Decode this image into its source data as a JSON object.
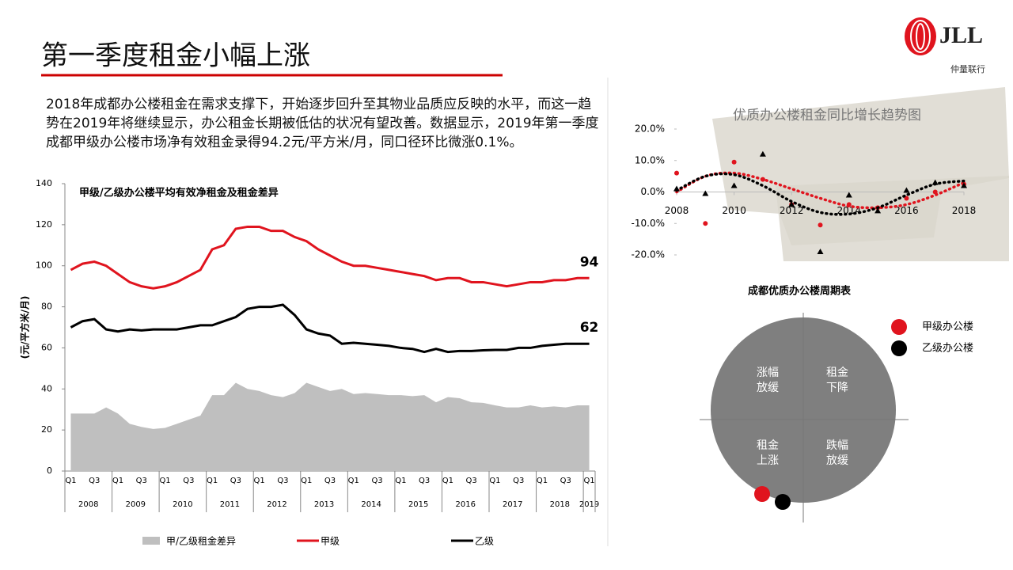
{
  "title": "第一季度租金小幅上涨",
  "logo": {
    "mark": "JLL",
    "sub": "仲量联行"
  },
  "paragraph": "2018年成都办公楼租金在需求支撑下，开始逐步回升至其物业品质应反映的水平，而这一趋势在2019年将继续显示，办公租金长期被低估的状况有望改善。数据显示，2019年第一季度成都甲级办公楼市场净有效租金录得94.2元/平方米/月，同口径环比微涨0.1%。",
  "chart_data": [
    {
      "type": "line",
      "title": "甲级/乙级办公楼平均有效净租金及租金差异",
      "y_label": "(元/平方米/月)",
      "categories": [
        "Q1",
        null,
        "Q3",
        null,
        "Q1",
        null,
        "Q3",
        null,
        "Q1",
        null,
        "Q3",
        null,
        "Q1",
        null,
        "Q3",
        null,
        "Q1",
        null,
        "Q3",
        null,
        "Q1",
        null,
        "Q3",
        null,
        "Q1",
        null,
        "Q3",
        null,
        "Q1",
        null,
        "Q3",
        null,
        "Q1",
        null,
        "Q3",
        null,
        "Q1",
        null,
        "Q3",
        null,
        "Q1",
        null,
        "Q3",
        null,
        "Q1"
      ],
      "years": [
        "2008",
        "2009",
        "2010",
        "2011",
        "2012",
        "2013",
        "2014",
        "2015",
        "2016",
        "2017",
        "2018",
        "2019"
      ],
      "ylim": [
        0,
        140
      ],
      "yticks": [
        0,
        20,
        40,
        60,
        80,
        100,
        120,
        140
      ],
      "series": [
        {
          "name": "甲/乙级租金差异",
          "style": "area",
          "color": "#bfbfbf",
          "values": [
            28,
            28,
            28,
            31,
            28,
            23,
            21.5,
            20.5,
            21,
            23,
            25,
            27,
            37,
            37,
            43,
            40,
            39,
            37,
            36,
            38,
            43,
            41,
            39,
            40,
            37.5,
            38,
            37.5,
            37,
            37,
            36.5,
            37,
            33.5,
            36,
            35.5,
            33.5,
            33.2,
            32,
            31,
            31,
            32,
            31,
            31.5,
            31,
            32,
            32
          ]
        },
        {
          "name": "甲级",
          "style": "line",
          "color": "#e0141e",
          "values": [
            98,
            101,
            102,
            100,
            96,
            92,
            90,
            89,
            90,
            92,
            95,
            98,
            108,
            110,
            118,
            119,
            119,
            117,
            117,
            114,
            112,
            108,
            105,
            102,
            100,
            100,
            99,
            98,
            97,
            96,
            95,
            93,
            94,
            94,
            92,
            92,
            91,
            90,
            91,
            92,
            92,
            93,
            93,
            94,
            94
          ]
        },
        {
          "name": "乙级",
          "style": "line",
          "color": "#000000",
          "values": [
            70,
            73,
            74,
            69,
            68,
            69,
            68.5,
            69,
            69,
            69,
            70,
            71,
            71,
            73,
            75,
            79,
            80,
            80,
            81,
            76,
            69,
            67,
            66,
            62,
            62.5,
            62,
            61.5,
            61,
            60,
            59.5,
            58,
            59.5,
            58,
            58.5,
            58.5,
            58.8,
            59,
            59,
            60,
            60,
            61,
            61.5,
            62,
            62,
            62
          ]
        }
      ]
    },
    {
      "type": "scatter",
      "title": "优质办公楼租金同比增长趋势图",
      "x": [
        2008,
        2009,
        2010,
        2011,
        2012,
        2013,
        2014,
        2015,
        2016,
        2017,
        2018
      ],
      "xlim": [
        2008,
        2018
      ],
      "xticks": [
        2008,
        2010,
        2012,
        2014,
        2016,
        2018
      ],
      "ylim": [
        -20,
        20
      ],
      "yticks": [
        {
          "value": -20,
          "label": "-20.0%"
        },
        {
          "value": -10,
          "label": "-10.0%"
        },
        {
          "value": 0,
          "label": "0.0%"
        },
        {
          "value": 10,
          "label": "10.0%"
        },
        {
          "value": 20,
          "label": "20.0%"
        }
      ],
      "series": [
        {
          "color": "#e0141e",
          "marker": "circle",
          "values": [
            6,
            -10,
            9.5,
            4,
            -4,
            -10.5,
            -4,
            -5,
            -2,
            0,
            2.5
          ],
          "trend": [
            0,
            5,
            6,
            4,
            1,
            -2,
            -4.5,
            -5,
            -4,
            -1,
            3
          ]
        },
        {
          "color": "#000000",
          "marker": "triangle",
          "values": [
            1,
            -0.5,
            2,
            12,
            -4,
            -19,
            -1,
            -6,
            0.5,
            3,
            2
          ],
          "trend": [
            0.5,
            5,
            5.5,
            2,
            -3,
            -6.5,
            -7,
            -5,
            -1,
            2.5,
            3.5
          ]
        }
      ]
    }
  ],
  "cycle": {
    "title": "成都优质办公楼周期表",
    "quadrants": [
      [
        "涨幅",
        "放缓"
      ],
      [
        "租金",
        "下降"
      ],
      [
        "租金",
        "上涨"
      ],
      [
        "跌幅",
        "放缓"
      ]
    ],
    "legend": [
      {
        "name": "甲级办公楼",
        "color": "#e0141e"
      },
      {
        "name": "乙级办公楼",
        "color": "#000000"
      }
    ]
  }
}
